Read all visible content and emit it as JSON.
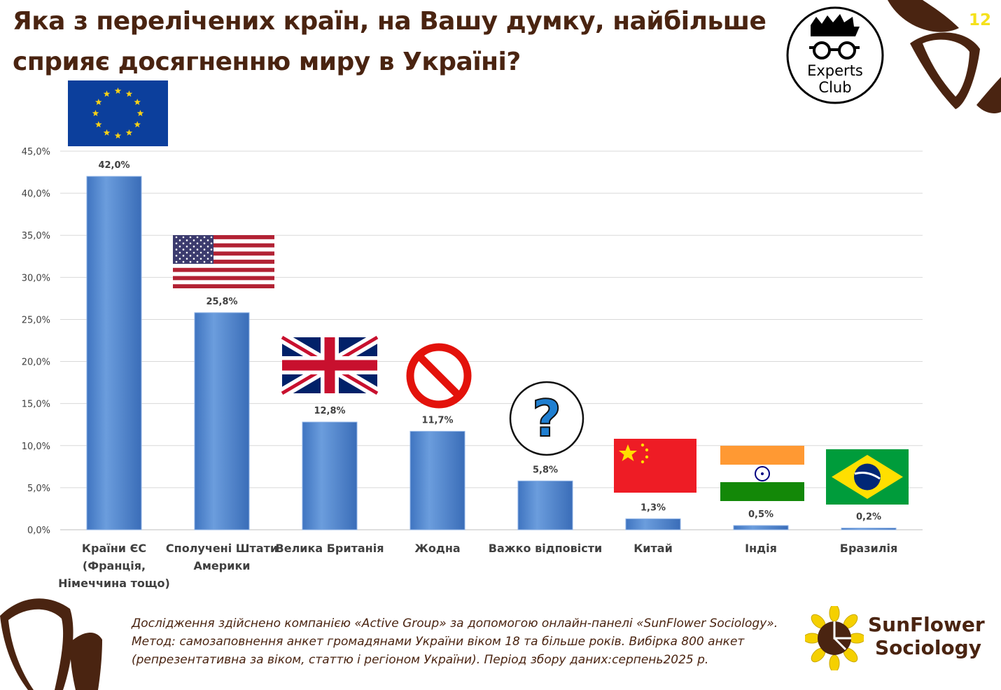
{
  "title": "Яка з перелічених країн, на Вашу думку, найбільше сприяє досягненню миру в Україні?",
  "page_number": "12",
  "experts_logo": {
    "line1": "Experts",
    "line2": "Club"
  },
  "chart_data": {
    "type": "bar",
    "categories": [
      [
        "Країни ЄС",
        "(Франція,",
        "Німеччина тощо)"
      ],
      [
        "Сполучені Штати",
        "Америки"
      ],
      [
        "Велика Британія"
      ],
      [
        "Жодна"
      ],
      [
        "Важко відповісти"
      ],
      [
        "Китай"
      ],
      [
        "Індія"
      ],
      [
        "Бразилія"
      ]
    ],
    "values": [
      42.0,
      25.8,
      12.8,
      11.7,
      5.8,
      1.3,
      0.5,
      0.2
    ],
    "value_labels": [
      "42,0%",
      "25,8%",
      "12,8%",
      "11,7%",
      "5,8%",
      "1,3%",
      "0,5%",
      "0,2%"
    ],
    "icons": [
      "eu-flag-icon",
      "usa-flag-icon",
      "uk-flag-icon",
      "prohibited-icon",
      "question-mark-icon",
      "china-flag-icon",
      "india-flag-icon",
      "brazil-flag-icon"
    ],
    "ylim": [
      0,
      45
    ],
    "yticks": [
      "0,0%",
      "5,0%",
      "10,0%",
      "15,0%",
      "20,0%",
      "25,0%",
      "30,0%",
      "35,0%",
      "40,0%",
      "45,0%"
    ],
    "grid": true,
    "bar_color": "#5b8fd4"
  },
  "footnote": "Дослідження здійснено компанією «Active Group» за допомогою онлайн-панелі «SunFlower Sociology». Метод: самозаповнення анкет громадянами України віком 18 та більше років. Вибірка 800 анкет (репрезентативна за віком, статтю і регіоном України). Період збору даних:серпень2025 р.",
  "brand": {
    "line1": "SunFlower",
    "line2": "Sociology",
    "color": "#4a2411"
  }
}
